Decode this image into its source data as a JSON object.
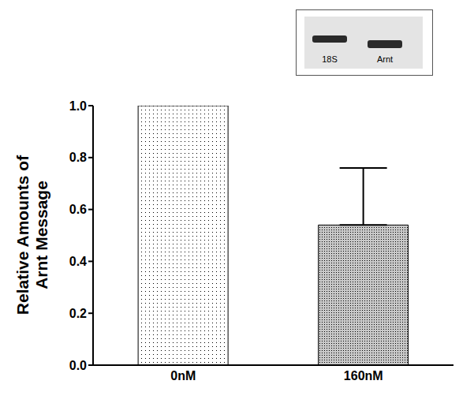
{
  "chart_data": {
    "type": "bar",
    "ylabel": "Relative Amounts of\nArnt Message",
    "categories": [
      "0nM",
      "160nM"
    ],
    "values": [
      1.0,
      0.54
    ],
    "error_bars": [
      null,
      0.22
    ],
    "colors": [
      "#ffffff",
      "#c8c8c8"
    ],
    "ylim": [
      0,
      1
    ],
    "yticks": [
      {
        "value": 0,
        "label": "0.0"
      },
      0.2,
      0.4,
      0.6,
      0.8,
      {
        "value": 1,
        "label": "1.0"
      }
    ],
    "grid": false,
    "annotations": [
      "18S",
      "Arnt"
    ]
  }
}
